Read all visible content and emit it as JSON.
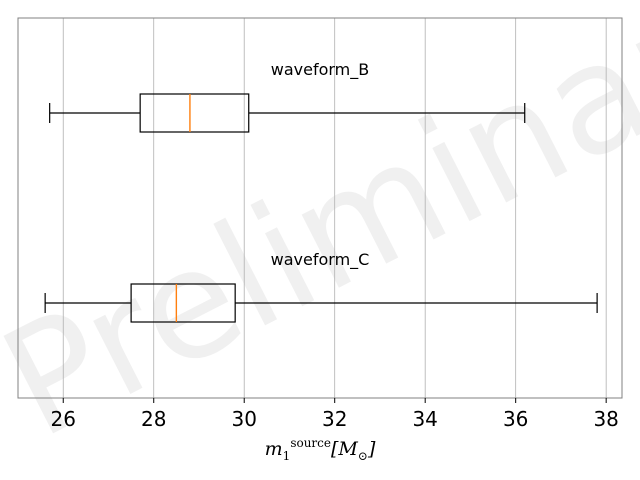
{
  "watermark": "Preliminary",
  "chart_data": {
    "type": "boxplot",
    "orientation": "horizontal",
    "title": "",
    "xlabel": "m_1^source [M_⊙]",
    "xlabel_parts": {
      "symbol": "m",
      "subscript": "1",
      "superscript": "source",
      "unit_open": "[",
      "unit_symbol": "M",
      "unit_subscript": "⊙",
      "unit_close": "]"
    },
    "xlim": [
      25.0,
      38.35
    ],
    "xticks": [
      26,
      28,
      30,
      32,
      34,
      36,
      38
    ],
    "grid": "vertical",
    "series": [
      {
        "name": "waveform_B",
        "whisker_low": 25.7,
        "q1": 27.7,
        "median": 28.8,
        "q3": 30.1,
        "whisker_high": 36.2
      },
      {
        "name": "waveform_C",
        "whisker_low": 25.6,
        "q1": 27.5,
        "median": 28.5,
        "q3": 29.8,
        "whisker_high": 37.8
      }
    ],
    "colors": {
      "box": "#000000",
      "median": "#ff7f0e",
      "grid": "#b0b0b0",
      "frame": "#808080"
    }
  }
}
